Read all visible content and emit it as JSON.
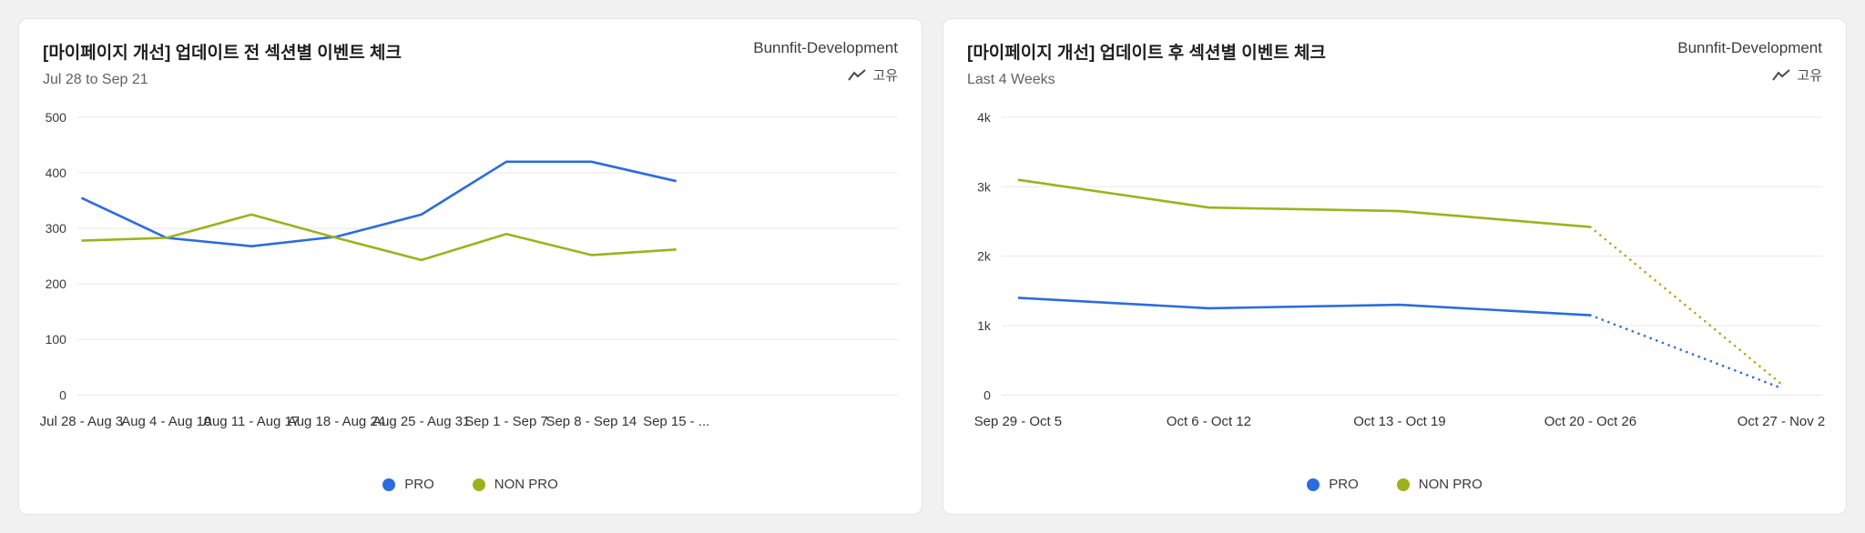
{
  "page": {
    "background_color": "#f1f1f2",
    "card_background": "#ffffff"
  },
  "cards": [
    {
      "title": "[마이페이지 개선] 업데이트 전 섹션별 이벤트 체크",
      "workspace": "Bunnfit-Development",
      "date_range": "Jul 28 to Sep 21",
      "metric_type": "고유"
    },
    {
      "title": "[마이페이지 개선] 업데이트 후 섹션별 이벤트 체크",
      "workspace": "Bunnfit-Development",
      "date_range": "Last 4 Weeks",
      "metric_type": "고유"
    }
  ],
  "chart_data": [
    {
      "type": "line",
      "title": "[마이페이지 개선] 업데이트 전 섹션별 이벤트 체크",
      "subtitle": "Jul 28 to Sep 21",
      "categories": [
        "Jul 28 - Aug 3",
        "Aug 4 - Aug 10",
        "Aug 11 - Aug 17",
        "Aug 18 - Aug 24",
        "Aug 25 - Aug 31",
        "Sep 1 - Sep 7",
        "Sep 8 - Sep 14",
        "Sep 15 - ..."
      ],
      "series": [
        {
          "name": "PRO",
          "color": "#2a6ce0",
          "values": [
            355,
            283,
            268,
            285,
            325,
            420,
            420,
            385
          ]
        },
        {
          "name": "NON PRO",
          "color": "#9cb21d",
          "values": [
            278,
            283,
            325,
            283,
            243,
            290,
            252,
            262
          ]
        }
      ],
      "ylim": [
        0,
        500
      ],
      "yticks": [
        {
          "value": 0,
          "label": "0"
        },
        {
          "value": 100,
          "label": "100"
        },
        {
          "value": 200,
          "label": "200"
        },
        {
          "value": 300,
          "label": "300"
        },
        {
          "value": 400,
          "label": "400"
        },
        {
          "value": 500,
          "label": "500"
        }
      ],
      "grid": "horizontal",
      "legend_position": "bottom",
      "x_span": [
        0.005,
        0.73
      ]
    },
    {
      "type": "line",
      "title": "[마이페이지 개선] 업데이트 후 섹션별 이벤트 체크",
      "subtitle": "Last 4 Weeks",
      "categories": [
        "Sep 29 - Oct 5",
        "Oct 6 - Oct 12",
        "Oct 13 - Oct 19",
        "Oct 20 - Oct 26",
        "Oct 27 - Nov 2"
      ],
      "series": [
        {
          "name": "PRO",
          "color": "#2a6ce0",
          "values": [
            1400,
            1250,
            1300,
            1150,
            100
          ],
          "dotted_from": 3
        },
        {
          "name": "NON PRO",
          "color": "#9cb21d",
          "values": [
            3100,
            2700,
            2650,
            2420,
            160
          ],
          "dotted_from": 3
        }
      ],
      "ylim": [
        0,
        4000
      ],
      "yticks": [
        {
          "value": 0,
          "label": "0"
        },
        {
          "value": 1000,
          "label": "1k"
        },
        {
          "value": 2000,
          "label": "2k"
        },
        {
          "value": 3000,
          "label": "3k"
        },
        {
          "value": 4000,
          "label": "4k"
        }
      ],
      "grid": "horizontal",
      "legend_position": "bottom",
      "x_span": [
        0.02,
        0.95
      ]
    }
  ]
}
